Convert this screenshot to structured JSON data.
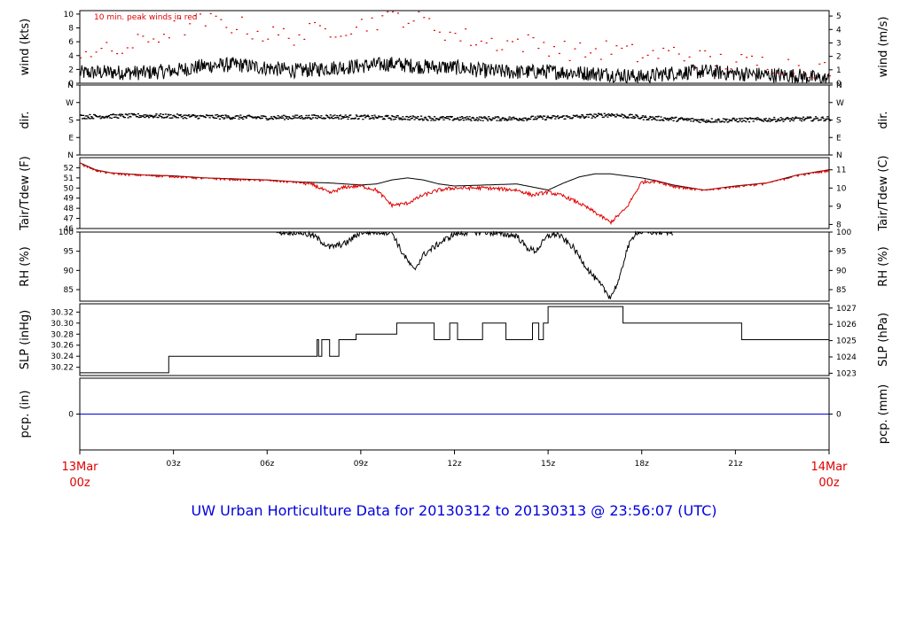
{
  "title": "UW Urban Horticulture Data for 20130312  to  20130313 @ 23:56:07  (UTC)",
  "colors": {
    "red": "#e00000",
    "blue": "#0000dd",
    "black": "#000000"
  },
  "chart_data": [
    {
      "panel": "wind",
      "type": "line",
      "ylabel": "wind (kts)",
      "ylabel_right": "wind (m/s)",
      "annotation": "10 min. peak winds in red",
      "ylim": [
        0,
        10.5
      ],
      "yticks": [
        "0",
        "2",
        "4",
        "6",
        "8",
        "10"
      ],
      "yticks_right": [
        "0",
        "1",
        "2",
        "3",
        "4",
        "5"
      ],
      "series": [
        {
          "values_x_hours": [
            0,
            1,
            2,
            3,
            4,
            5,
            6,
            7,
            8,
            9,
            10,
            11,
            12,
            13,
            14,
            15,
            16,
            17,
            18,
            19,
            20,
            21,
            22,
            23,
            24
          ],
          "values": [
            1.5,
            1.6,
            1.5,
            1.8,
            2.5,
            2.7,
            2.2,
            1.8,
            2.2,
            2.5,
            2.8,
            2.4,
            2.3,
            1.8,
            1.6,
            1.7,
            1.5,
            1.3,
            0.9,
            1.5,
            1.7,
            1.4,
            1.2,
            1.1,
            0.5
          ]
        },
        {
          "values_x_hours": [
            0,
            1,
            2,
            3,
            4,
            5,
            6,
            7,
            8,
            9,
            10,
            11,
            12,
            13,
            14,
            15,
            16,
            17,
            18,
            19,
            20,
            21,
            22,
            23,
            24
          ],
          "values": [
            5,
            4.5,
            6,
            8,
            9,
            8.5,
            7,
            7,
            8,
            8.5,
            10,
            9,
            7,
            6,
            6,
            5.5,
            4.5,
            5,
            4,
            4.5,
            3.5,
            3,
            3,
            2.5,
            2
          ]
        }
      ]
    },
    {
      "panel": "direction",
      "type": "scatter",
      "ylabel": "dir.",
      "ylabel_right": "dir.",
      "yticks": [
        "N",
        "E",
        "S",
        "W",
        "N"
      ],
      "ylim": [
        0,
        360
      ],
      "series": [
        {
          "values_x_hours": [
            0,
            2,
            4,
            6,
            8,
            10,
            12,
            14,
            16,
            17,
            18,
            20,
            22,
            24
          ],
          "values": [
            200,
            205,
            200,
            195,
            200,
            195,
            190,
            190,
            200,
            210,
            195,
            180,
            185,
            190
          ]
        }
      ]
    },
    {
      "panel": "temperature",
      "type": "line",
      "ylabel": "Tair/Tdew (F)",
      "ylabel_right": "Tair/Tdew (C)",
      "ylim": [
        46,
        53
      ],
      "yticks": [
        "46",
        "47",
        "48",
        "49",
        "50",
        "51",
        "52"
      ],
      "yticks_right": [
        "8",
        "9",
        "10",
        "11"
      ],
      "series": [
        {
          "values_x_hours": [
            0,
            0.5,
            1,
            2,
            3,
            4,
            5,
            6,
            7,
            8,
            9,
            9.5,
            10,
            10.5,
            11,
            11.5,
            12,
            13,
            14,
            14.5,
            15,
            15.5,
            16,
            16.5,
            17,
            17.5,
            18,
            18.5,
            19,
            20,
            21,
            22,
            23,
            24
          ],
          "values": [
            52.5,
            51.8,
            51.5,
            51.3,
            51.2,
            51,
            50.9,
            50.8,
            50.6,
            50.5,
            50.3,
            50.4,
            50.8,
            51,
            50.8,
            50.4,
            50.2,
            50.3,
            50.4,
            50.1,
            49.8,
            50.5,
            51.1,
            51.4,
            51.4,
            51.2,
            51,
            50.7,
            50.3,
            49.8,
            50.2,
            50.5,
            51.3,
            51.8
          ]
        },
        {
          "values_x_hours": [
            0,
            0.5,
            1,
            2,
            3,
            4,
            5,
            6,
            7,
            7.5,
            8,
            8.5,
            9,
            9.5,
            10,
            10.5,
            11,
            11.5,
            12,
            13,
            14,
            14.5,
            15,
            15.5,
            16,
            16.5,
            17,
            17.5,
            18,
            18.5,
            19,
            20,
            21,
            22,
            23,
            24
          ],
          "values": [
            52.5,
            51.8,
            51.5,
            51.3,
            51.2,
            51,
            50.9,
            50.8,
            50.6,
            50.3,
            49.5,
            50.1,
            50.2,
            49.8,
            48.3,
            48.5,
            49.3,
            49.8,
            50,
            50,
            49.8,
            49.3,
            49.6,
            49.2,
            48.5,
            47.6,
            46.6,
            48,
            50.6,
            50.7,
            50.2,
            49.8,
            50.2,
            50.5,
            51.3,
            51.8
          ]
        }
      ]
    },
    {
      "panel": "rh",
      "type": "line",
      "ylabel": "RH (%)",
      "ylabel_right": "RH (%)",
      "ylim": [
        82,
        100
      ],
      "yticks": [
        "85",
        "90",
        "95",
        "100"
      ],
      "yticks_right": [
        "85",
        "90",
        "95",
        "100"
      ],
      "series": [
        {
          "values_x_hours": [
            6.3,
            7,
            7.5,
            8,
            8.5,
            9,
            9.3,
            10,
            10.3,
            10.7,
            11,
            11.5,
            12,
            12.5,
            13,
            13.5,
            14,
            14.3,
            14.6,
            15,
            15.3,
            15.8,
            16.3,
            16.8,
            17,
            17.3,
            17.5,
            17.8,
            18.5,
            19
          ],
          "values": [
            100,
            100,
            99,
            96,
            97,
            100,
            100,
            100,
            95,
            90,
            94,
            97,
            99.5,
            100,
            100,
            99.5,
            99,
            96,
            95,
            99,
            99.5,
            96,
            90,
            85,
            83,
            88,
            95,
            100,
            100,
            100
          ]
        }
      ]
    },
    {
      "panel": "slp",
      "type": "line",
      "ylabel": "SLP (inHg)",
      "ylabel_right": "SLP (hPa)",
      "ylim": [
        30.205,
        30.335
      ],
      "yticks": [
        "30.22",
        "30.24",
        "30.26",
        "30.28",
        "30.30",
        "30.32"
      ],
      "yticks_right": [
        "1023",
        "1024",
        "1025",
        "1026",
        "1027"
      ],
      "series": [
        {
          "values_x_hours": [
            0,
            2.85,
            2.85,
            7.6,
            7.6,
            7.65,
            7.65,
            7.75,
            7.75,
            8.0,
            8.0,
            8.3,
            8.3,
            8.85,
            8.85,
            10.15,
            10.15,
            11.35,
            11.35,
            11.85,
            11.85,
            12.1,
            12.1,
            12.9,
            12.9,
            13.65,
            13.65,
            14.5,
            14.5,
            14.7,
            14.7,
            14.85,
            14.85,
            15.0,
            15.0,
            17.4,
            17.4,
            21.2,
            21.2,
            22.5,
            22.5,
            24
          ],
          "values": [
            30.21,
            30.21,
            30.24,
            30.24,
            30.27,
            30.27,
            30.24,
            30.24,
            30.27,
            30.27,
            30.24,
            30.24,
            30.27,
            30.27,
            30.28,
            30.28,
            30.3,
            30.3,
            30.27,
            30.27,
            30.3,
            30.3,
            30.27,
            30.27,
            30.3,
            30.3,
            30.27,
            30.27,
            30.3,
            30.3,
            30.27,
            30.27,
            30.3,
            30.3,
            30.33,
            30.33,
            30.3,
            30.3,
            30.27,
            30.27,
            30.27,
            30.27
          ]
        }
      ]
    },
    {
      "panel": "precip",
      "type": "line",
      "ylabel": "pcp. (in)",
      "ylabel_right": "pcp. (mm)",
      "ylim": [
        -1,
        1
      ],
      "yticks": [
        "0"
      ],
      "yticks_right": [
        "0"
      ],
      "series": [
        {
          "values_x_hours": [
            0,
            24
          ],
          "values": [
            0,
            0
          ]
        }
      ]
    }
  ],
  "xaxis": {
    "ticks": [
      "03z",
      "06z",
      "09z",
      "12z",
      "15z",
      "18z",
      "21z"
    ],
    "start_label": [
      "13Mar",
      "00z"
    ],
    "end_label": [
      "14Mar",
      "00z"
    ]
  }
}
